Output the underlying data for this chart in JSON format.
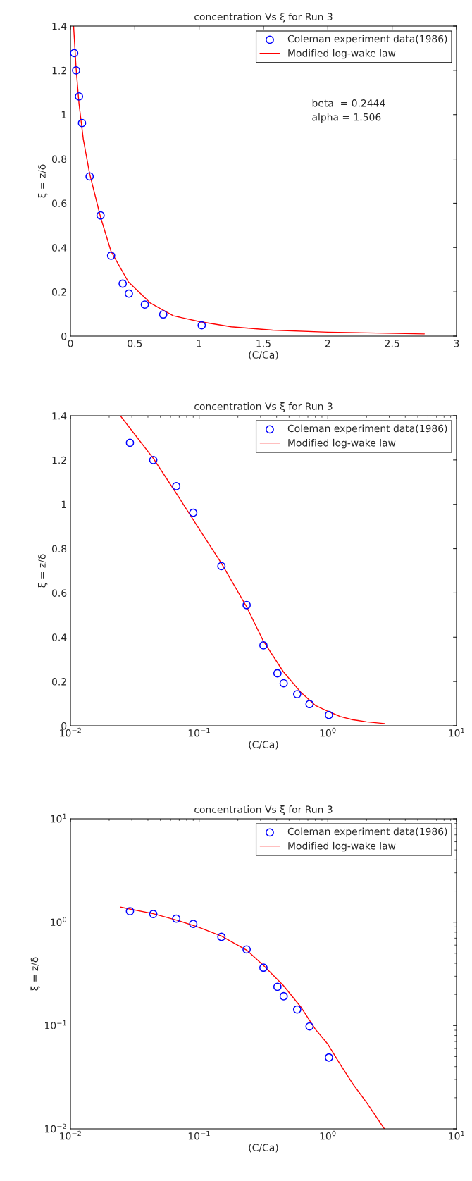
{
  "chart_data": [
    {
      "type": "line",
      "title": "concentration Vs ξ for Run 3",
      "xlabel": "(C/Ca)",
      "ylabel": "ξ = z/δ",
      "legend": "top right",
      "grid": false,
      "xlim": [
        0,
        3
      ],
      "xticks": [
        0,
        0.5,
        1,
        1.5,
        2,
        2.5,
        3
      ],
      "ylim": [
        0,
        1.4
      ],
      "yticks": [
        0,
        0.2,
        0.4,
        0.6,
        0.8,
        1,
        1.2,
        1.4
      ],
      "annotations": [
        "beta  = 0.2444",
        "alpha = 1.506"
      ],
      "series": [
        {
          "name": "Coleman experiment data(1986)",
          "type": "scatter",
          "marker": "circle",
          "color": "#0000ff",
          "x": [
            0.029,
            0.044,
            0.0664,
            0.09,
            0.149,
            0.234,
            0.316,
            0.406,
            0.454,
            0.578,
            0.721,
            1.02
          ],
          "values": [
            1.278,
            1.2,
            1.082,
            0.962,
            0.721,
            0.545,
            0.363,
            0.237,
            0.192,
            0.143,
            0.098,
            0.049
          ]
        },
        {
          "name": "Modified log-wake law",
          "color": "#ff0000",
          "x": [
            0.0244,
            0.044,
            0.0664,
            0.1,
            0.149,
            0.234,
            0.316,
            0.45,
            0.62,
            0.8,
            1.0,
            1.25,
            1.57,
            2.0,
            2.75
          ],
          "values": [
            1.4,
            1.208,
            1.05,
            0.889,
            0.734,
            0.537,
            0.382,
            0.245,
            0.15,
            0.092,
            0.066,
            0.042,
            0.027,
            0.018,
            0.01
          ]
        }
      ]
    },
    {
      "type": "line",
      "title": "concentration Vs ξ for Run 3",
      "xlabel": "(C/Ca)",
      "ylabel": "ξ = z/δ",
      "legend": "top right",
      "grid": false,
      "log": "x",
      "xlim": [
        0.01,
        10
      ],
      "xticks": [
        {
          "value": 0.01,
          "label": "10$^{−2}$"
        },
        {
          "value": 0.1,
          "label": "10$^{−1}$"
        },
        {
          "value": 1,
          "label": "10$^{0}$"
        },
        {
          "value": 10,
          "label": "10$^{1}$"
        }
      ],
      "ylim": [
        0,
        1.4
      ],
      "yticks": [
        0,
        0.2,
        0.4,
        0.6,
        0.8,
        1,
        1.2,
        1.4
      ],
      "series": [
        {
          "name": "Coleman experiment data(1986)",
          "type": "scatter",
          "marker": "circle",
          "color": "#0000ff",
          "x": [
            0.029,
            0.044,
            0.0664,
            0.09,
            0.149,
            0.234,
            0.316,
            0.406,
            0.454,
            0.578,
            0.721,
            1.02
          ],
          "values": [
            1.278,
            1.2,
            1.082,
            0.962,
            0.721,
            0.545,
            0.363,
            0.237,
            0.192,
            0.143,
            0.098,
            0.049
          ]
        },
        {
          "name": "Modified log-wake law",
          "color": "#ff0000",
          "x": [
            0.0244,
            0.044,
            0.0664,
            0.1,
            0.149,
            0.234,
            0.316,
            0.45,
            0.62,
            0.8,
            1.0,
            1.25,
            1.57,
            2.0,
            2.75
          ],
          "values": [
            1.4,
            1.208,
            1.05,
            0.889,
            0.734,
            0.537,
            0.382,
            0.245,
            0.15,
            0.092,
            0.066,
            0.042,
            0.027,
            0.018,
            0.01
          ]
        }
      ]
    },
    {
      "type": "line",
      "title": "concentration Vs ξ for Run 3",
      "xlabel": "(C/Ca)",
      "ylabel": "ξ = z/δ",
      "legend": "top right",
      "grid": false,
      "log": "xy",
      "xlim": [
        0.01,
        10
      ],
      "xticks": [
        {
          "value": 0.01,
          "label": "10$^{−2}$"
        },
        {
          "value": 0.1,
          "label": "10$^{−1}$"
        },
        {
          "value": 1,
          "label": "10$^{0}$"
        },
        {
          "value": 10,
          "label": "10$^{1}$"
        }
      ],
      "ylim": [
        0.01,
        10
      ],
      "yticks": [
        {
          "value": 0.01,
          "label": "10$^{−2}$"
        },
        {
          "value": 0.1,
          "label": "10$^{−1}$"
        },
        {
          "value": 1,
          "label": "10$^{0}$"
        },
        {
          "value": 10,
          "label": "10$^{1}$"
        }
      ],
      "series": [
        {
          "name": "Coleman experiment data(1986)",
          "type": "scatter",
          "marker": "circle",
          "color": "#0000ff",
          "x": [
            0.029,
            0.044,
            0.0664,
            0.09,
            0.149,
            0.234,
            0.316,
            0.406,
            0.454,
            0.578,
            0.721,
            1.02
          ],
          "values": [
            1.278,
            1.2,
            1.082,
            0.962,
            0.721,
            0.545,
            0.363,
            0.237,
            0.192,
            0.143,
            0.098,
            0.049
          ]
        },
        {
          "name": "Modified log-wake law",
          "color": "#ff0000",
          "x": [
            0.0244,
            0.044,
            0.0664,
            0.1,
            0.149,
            0.234,
            0.316,
            0.45,
            0.62,
            0.8,
            1.0,
            1.25,
            1.57,
            2.0,
            2.75
          ],
          "values": [
            1.4,
            1.208,
            1.05,
            0.889,
            0.734,
            0.537,
            0.382,
            0.245,
            0.15,
            0.092,
            0.066,
            0.042,
            0.027,
            0.018,
            0.01
          ]
        }
      ]
    }
  ]
}
